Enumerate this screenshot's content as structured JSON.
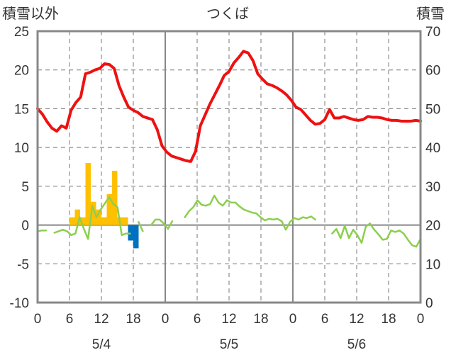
{
  "chart_data": {
    "type": "bar+line",
    "title": "つくば",
    "ylabel_left": "積雪以外",
    "ylabel_right": "積雪",
    "ylim_left": [
      -10,
      25
    ],
    "ylim_right": [
      0,
      70
    ],
    "yticks_left": [
      "25",
      "20",
      "15",
      "10",
      "5",
      "0",
      "-5",
      "-10"
    ],
    "yticks_right": [
      "70",
      "60",
      "50",
      "40",
      "30",
      "20",
      "10",
      "0"
    ],
    "xticks": [
      "0",
      "6",
      "12",
      "18",
      "0",
      "6",
      "12",
      "18",
      "0",
      "6",
      "12",
      "18",
      "0"
    ],
    "day_labels": [
      "5/4",
      "5/5",
      "5/6"
    ],
    "grid": true,
    "colors": {
      "temperature": "#ee1111",
      "humidity_change": "#8ccf4f",
      "bar_positive": "#ffc000",
      "bar_negative": "#0070c0",
      "snow_depth": "#7030a0",
      "frame": "#888888"
    },
    "series": [
      {
        "type": "line",
        "values": [
          15,
          14.3,
          13.3,
          12.5,
          12.1,
          12.8,
          12.5,
          14.8,
          15.8,
          16.5,
          19.5,
          19.7,
          20,
          20.2,
          20.8,
          20.7,
          20.2,
          18,
          16.5,
          15.2,
          14.8,
          14.5,
          14,
          13.8,
          13.6,
          12.3,
          10.2,
          9.4,
          8.9,
          8.7,
          8.5,
          8.3,
          8.2,
          9.5,
          12.8,
          14.2,
          15.6,
          16.8,
          18,
          19.3,
          19.8,
          20.9,
          21.6,
          22.4,
          22.2,
          21.2,
          19.5,
          18.8,
          18.2,
          18,
          17.7,
          17.3,
          16.8,
          16.1,
          15.2,
          14.9,
          14.2,
          13.5,
          13,
          13.1,
          13.6,
          14.9,
          13.8,
          13.8,
          14,
          13.8,
          13.6,
          13.5,
          13.6,
          14,
          13.9,
          13.9,
          13.8,
          13.6,
          13.5,
          13.5,
          13.4,
          13.4,
          13.4,
          13.5,
          13.4
        ]
      },
      {
        "type": "line",
        "values": [
          -0.8,
          -0.7,
          -0.7,
          null,
          -1,
          -0.8,
          -0.6,
          -0.8,
          -1.3,
          -1.1,
          1,
          -0.5,
          -1.8,
          2.5,
          1,
          2,
          2.8,
          3.6,
          2.7,
          2.3,
          -1.3,
          -1.1,
          -1.1,
          null,
          0.4,
          -0.8,
          null,
          0,
          0.7,
          0.7,
          0.2,
          -0.5,
          0.5,
          null,
          null,
          1,
          1.8,
          2.3,
          3.2,
          2.6,
          2.5,
          2.7,
          3.8,
          2.9,
          2.5,
          3.2,
          2.9,
          2.9,
          2.4,
          2,
          1.8,
          1.6,
          1.5,
          1,
          0.6,
          0.8,
          0.7,
          0.8,
          0.5,
          -0.6,
          0.4,
          0.9,
          0.7,
          1,
          0.9,
          1.1,
          0.7,
          null,
          null,
          null,
          -1.1,
          -0.5,
          -1.7,
          -0.1,
          -1.7,
          -0.6,
          -1.3,
          -2.3,
          -0.2,
          0.2,
          -0.6,
          -1.2,
          -1.9,
          -1.8,
          -0.7,
          -0.9,
          -0.7,
          -1.1,
          -1.9,
          -2.6,
          -2.8,
          -1.8
        ]
      },
      {
        "type": "bar",
        "values": [
          0,
          0,
          0,
          0,
          0,
          0,
          1,
          2,
          1,
          8,
          3,
          2,
          1,
          4,
          7,
          1,
          1,
          -2,
          -3,
          0,
          0,
          0,
          0,
          0,
          0,
          0,
          0,
          0,
          0,
          0,
          0,
          0,
          0,
          0,
          0,
          0,
          0,
          0,
          0,
          0,
          0,
          0,
          0,
          0,
          0,
          0,
          0,
          0,
          0,
          0,
          0,
          0,
          0,
          0,
          0,
          0,
          0,
          0,
          0,
          0,
          0,
          0,
          0,
          0,
          0,
          0,
          0,
          0,
          0,
          0,
          0,
          0,
          0,
          0,
          0,
          0,
          0,
          0,
          0,
          0,
          0,
          0,
          0,
          0,
          0,
          0,
          0,
          0,
          0,
          0,
          0,
          0,
          0,
          0,
          0,
          0,
          0,
          0,
          0,
          0
        ]
      },
      {
        "type": "line_right_axis",
        "values": [
          0,
          0,
          0,
          0,
          0,
          0,
          0,
          0,
          0,
          0,
          0,
          0,
          0,
          0,
          0,
          0,
          0,
          0,
          0,
          0,
          0,
          0,
          0,
          0,
          0,
          0,
          0,
          0,
          0,
          0,
          0,
          0,
          0,
          0,
          0,
          0,
          0,
          0,
          0,
          0,
          0,
          0,
          0,
          0,
          0,
          0,
          0,
          0,
          0,
          0,
          0,
          0,
          0,
          0,
          0,
          0,
          0,
          0,
          0,
          0,
          0,
          0,
          0,
          0,
          0,
          0,
          0,
          0,
          0,
          0,
          0,
          0,
          0,
          0,
          0,
          0,
          0,
          0,
          0,
          0,
          0
        ]
      }
    ]
  }
}
